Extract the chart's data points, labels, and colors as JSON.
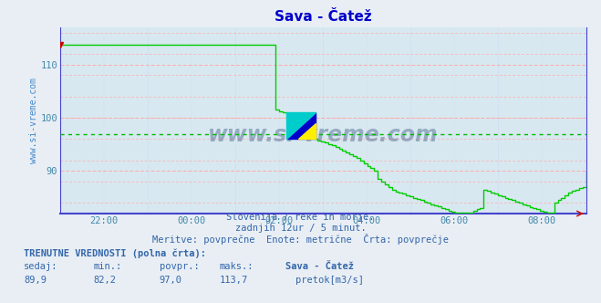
{
  "title": "Sava - Čatež",
  "title_color": "#0000cc",
  "bg_color": "#e8eef4",
  "plot_bg_color": "#d8e8f0",
  "grid_color_h_major": "#ffaaaa",
  "grid_color_h_minor": "#ffcccc",
  "grid_color_v": "#ccccee",
  "line_color": "#00cc00",
  "avg_line_color": "#00bb00",
  "avg_value": 97.0,
  "ylim": [
    82,
    117
  ],
  "yticks": [
    90,
    100,
    110
  ],
  "tick_color": "#4488aa",
  "text_color": "#3366aa",
  "axis_color": "#2244bb",
  "bottom_axis_color": "#4444cc",
  "ylabel_text": "www.si-vreme.com",
  "ylabel_color": "#4488cc",
  "subtitle1": "Slovenija / reke in morje.",
  "subtitle2": "zadnjih 12ur / 5 minut.",
  "subtitle3": "Meritve: povprečne  Enote: metrične  Črta: povprečje",
  "footer_bold": "TRENUTNE VREDNOSTI (polna črta):",
  "footer_labels": [
    "sedaj:",
    "min.:",
    "povpr.:",
    "maks.:",
    "Sava - Čatež"
  ],
  "footer_values": [
    "89,9",
    "82,2",
    "97,0",
    "113,7"
  ],
  "legend_label": "pretok[m3/s]",
  "legend_color": "#00bb00",
  "x_tick_labels": [
    "22:00",
    "00:00",
    "02:00",
    "04:00",
    "06:00",
    "08:00"
  ],
  "data_y": [
    113.7,
    113.7,
    113.7,
    113.7,
    113.7,
    113.7,
    113.7,
    113.7,
    113.7,
    113.7,
    113.7,
    113.7,
    113.7,
    113.7,
    113.7,
    113.7,
    113.7,
    113.7,
    113.7,
    113.7,
    113.7,
    113.7,
    113.7,
    113.7,
    113.7,
    113.7,
    113.7,
    113.7,
    113.7,
    113.7,
    113.7,
    113.7,
    113.7,
    113.7,
    113.7,
    113.7,
    113.7,
    113.7,
    113.7,
    113.7,
    113.7,
    113.7,
    113.7,
    113.7,
    113.7,
    113.7,
    113.7,
    113.7,
    113.7,
    113.7,
    113.7,
    113.7,
    113.7,
    113.7,
    113.7,
    113.7,
    113.7,
    113.7,
    113.7,
    113.7,
    113.7,
    101.5,
    101.2,
    101.0,
    100.8,
    100.5,
    100.3,
    100.0,
    99.8,
    99.5,
    96.5,
    96.2,
    96.0,
    95.8,
    95.5,
    95.3,
    95.0,
    94.8,
    94.5,
    94.2,
    93.8,
    93.5,
    93.2,
    92.8,
    92.5,
    92.0,
    91.5,
    91.0,
    90.5,
    90.0,
    88.5,
    88.0,
    87.5,
    87.0,
    86.5,
    86.2,
    86.0,
    85.7,
    85.5,
    85.2,
    85.0,
    84.8,
    84.5,
    84.2,
    84.0,
    83.8,
    83.5,
    83.3,
    83.0,
    82.8,
    82.5,
    82.3,
    82.2,
    82.2,
    82.2,
    82.2,
    82.2,
    82.5,
    82.8,
    83.0,
    86.5,
    86.3,
    86.0,
    85.8,
    85.5,
    85.2,
    85.0,
    84.8,
    84.5,
    84.2,
    84.0,
    83.8,
    83.5,
    83.2,
    83.0,
    82.8,
    82.5,
    82.3,
    82.2,
    82.2,
    84.0,
    84.5,
    85.0,
    85.5,
    86.0,
    86.3,
    86.5,
    86.8,
    87.0,
    89.9
  ]
}
